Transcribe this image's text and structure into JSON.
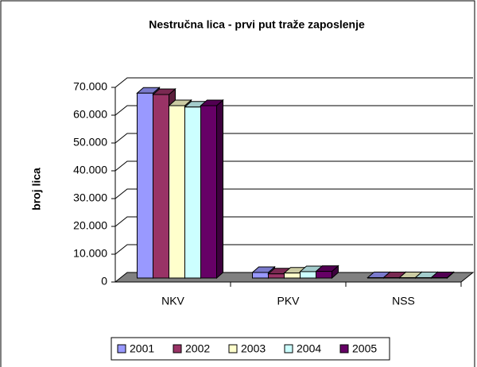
{
  "chart_data": {
    "type": "bar3d",
    "title": "Nestručna lica - prvi put traže zaposlenje",
    "y_label": "broj lica",
    "categories": [
      "NKV",
      "PKV",
      "NSS"
    ],
    "series": [
      {
        "name": "2001",
        "color": "#9999ff",
        "values": [
          66500,
          2000,
          150
        ]
      },
      {
        "name": "2002",
        "color": "#993366",
        "values": [
          66000,
          1500,
          150
        ]
      },
      {
        "name": "2003",
        "color": "#ffffcc",
        "values": [
          62000,
          1800,
          150
        ]
      },
      {
        "name": "2004",
        "color": "#ccffff",
        "values": [
          61500,
          2300,
          150
        ]
      },
      {
        "name": "2005",
        "color": "#660066",
        "values": [
          62000,
          2400,
          150
        ]
      }
    ],
    "ylim": [
      0,
      70000
    ],
    "yticks": [
      0,
      {
        "value": 10000,
        "label": "10.000"
      },
      {
        "value": 20000,
        "label": "20.000"
      },
      {
        "value": 30000,
        "label": "30.000"
      },
      {
        "value": 40000,
        "label": "40.000"
      },
      {
        "value": 50000,
        "label": "50.000"
      },
      {
        "value": 60000,
        "label": "60.000"
      },
      {
        "value": 70000,
        "label": "70.000"
      }
    ],
    "grid": true,
    "legend": "bottom"
  }
}
